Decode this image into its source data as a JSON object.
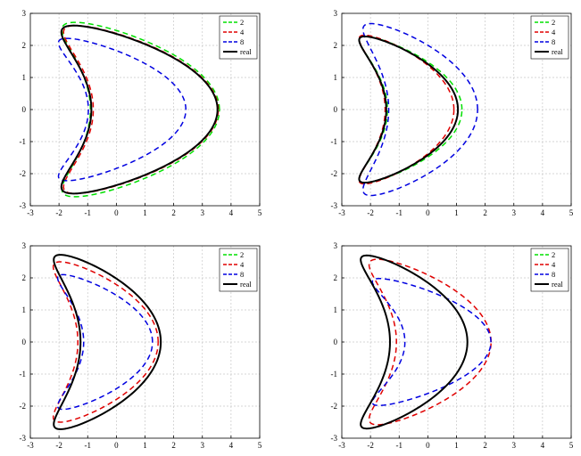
{
  "chart_data": [
    {
      "type": "line",
      "xlim": [
        -3,
        5
      ],
      "ylim": [
        -3,
        3
      ],
      "xticks": [
        "-3",
        "-2",
        "-1",
        "0",
        "1",
        "2",
        "3",
        "4",
        "5"
      ],
      "yticks": [
        "-3",
        "-2",
        "-1",
        "0",
        "1",
        "2",
        "3"
      ],
      "grid": true,
      "legend_position": "top-right",
      "series": [
        {
          "name": "2",
          "color": "#00e000",
          "style": "dashed",
          "params": {
            "x0": -0.05,
            "w": 2.25,
            "h": 2.72,
            "p": 0.62,
            "dip": 2.12
          }
        },
        {
          "name": "4",
          "color": "#e00000",
          "style": "dashed",
          "params": {
            "x0": -0.02,
            "w": 2.18,
            "h": 2.62,
            "p": 0.64,
            "dip": 2.22
          }
        },
        {
          "name": "8",
          "color": "#0000e0",
          "style": "dashed",
          "params": {
            "x0": -0.5,
            "w": 1.7,
            "h": 2.22,
            "p": 0.72,
            "dip": 1.6
          }
        },
        {
          "name": "real",
          "color": "#000000",
          "style": "solid",
          "params": {
            "x0": -0.08,
            "w": 2.2,
            "h": 2.62,
            "p": 0.64,
            "dip": 2.15
          }
        }
      ]
    },
    {
      "type": "line",
      "xlim": [
        -3,
        5
      ],
      "ylim": [
        -3,
        3
      ],
      "xticks": [
        "-3",
        "-2",
        "-1",
        "0",
        "1",
        "2",
        "3",
        "4",
        "5"
      ],
      "yticks": [
        "-3",
        "-2",
        "-1",
        "0",
        "1",
        "2",
        "3"
      ],
      "grid": true,
      "legend_position": "top-right",
      "series": [
        {
          "name": "2",
          "color": "#00e000",
          "style": "dashed",
          "params": {
            "x0": -1.15,
            "w": 1.3,
            "h": 2.28,
            "p": 0.8,
            "dip": 0.85
          }
        },
        {
          "name": "4",
          "color": "#e00000",
          "style": "dashed",
          "params": {
            "x0": -1.25,
            "w": 1.2,
            "h": 2.32,
            "p": 0.8,
            "dip": 0.8
          }
        },
        {
          "name": "8",
          "color": "#0000e0",
          "style": "dashed",
          "params": {
            "x0": -0.9,
            "w": 1.55,
            "h": 2.68,
            "p": 0.7,
            "dip": 1.15
          }
        },
        {
          "name": "real",
          "color": "#000000",
          "style": "solid",
          "params": {
            "x0": -1.2,
            "w": 1.25,
            "h": 2.28,
            "p": 0.8,
            "dip": 0.8
          }
        }
      ]
    },
    {
      "type": "line",
      "xlim": [
        -3,
        5
      ],
      "ylim": [
        -3,
        3
      ],
      "xticks": [
        "-3",
        "-2",
        "-1",
        "0",
        "1",
        "2",
        "3",
        "4",
        "5"
      ],
      "yticks": [
        "-3",
        "-2",
        "-1",
        "0",
        "1",
        "2",
        "3"
      ],
      "grid": true,
      "legend_position": "top-right",
      "series": [
        {
          "name": "2",
          "color": "#00e000",
          "style": "dashed",
          "params": {
            "x0": -0.9,
            "w": 1.4,
            "h": 2.72,
            "p": 0.75,
            "dip": 1.3
          }
        },
        {
          "name": "4",
          "color": "#e00000",
          "style": "dashed",
          "params": {
            "x0": -0.95,
            "w": 1.4,
            "h": 2.5,
            "p": 0.72,
            "dip": 1.4
          }
        },
        {
          "name": "8",
          "color": "#0000e0",
          "style": "dashed",
          "params": {
            "x0": -0.9,
            "w": 1.2,
            "h": 2.1,
            "p": 0.8,
            "dip": 1.0
          }
        },
        {
          "name": "real",
          "color": "#000000",
          "style": "solid",
          "params": {
            "x0": -0.9,
            "w": 1.4,
            "h": 2.72,
            "p": 0.75,
            "dip": 1.3
          }
        }
      ]
    },
    {
      "type": "line",
      "xlim": [
        -3,
        5
      ],
      "ylim": [
        -3,
        3
      ],
      "xticks": [
        "-3",
        "-2",
        "-1",
        "0",
        "1",
        "2",
        "3",
        "4",
        "5"
      ],
      "yticks": [
        "-3",
        "-2",
        "-1",
        "0",
        "1",
        "2",
        "3"
      ],
      "grid": true,
      "legend_position": "top-right",
      "series": [
        {
          "name": "2",
          "color": "#00e000",
          "style": "dashed",
          "params": {
            "x0": -1.05,
            "w": 1.35,
            "h": 2.7,
            "p": 0.8,
            "dip": 1.05
          }
        },
        {
          "name": "4",
          "color": "#e00000",
          "style": "dashed",
          "params": {
            "x0": -0.6,
            "w": 1.65,
            "h": 2.58,
            "p": 0.7,
            "dip": 1.4
          }
        },
        {
          "name": "8",
          "color": "#0000e0",
          "style": "dashed",
          "params": {
            "x0": -0.5,
            "w": 1.5,
            "h": 1.98,
            "p": 0.8,
            "dip": 1.4
          }
        },
        {
          "name": "real",
          "color": "#000000",
          "style": "solid",
          "params": {
            "x0": -1.05,
            "w": 1.35,
            "h": 2.7,
            "p": 0.8,
            "dip": 1.05
          }
        }
      ]
    }
  ]
}
